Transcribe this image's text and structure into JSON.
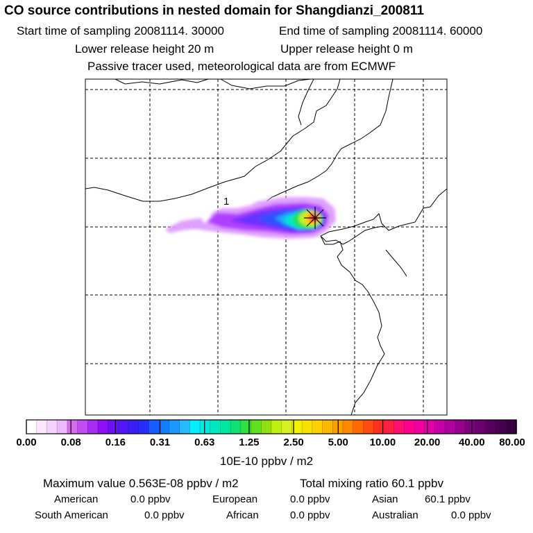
{
  "header": {
    "title": "CO  source contributions in nested domain for Shangdianzi_200811",
    "start_label": "Start time of sampling 20081114. 30000",
    "end_label": "End time of sampling 20081114. 60000",
    "lower_label": "Lower release height   20 m",
    "upper_label": "Upper release height    0 m",
    "tracer_label": "Passive tracer used, meteorological data are from ECMWF"
  },
  "map": {
    "receptor_label": "1",
    "plume_colors": [
      "#e0a0ff",
      "#b040ff",
      "#6a30ff",
      "#3050ff",
      "#1aa8ff",
      "#00e8d0",
      "#20e060",
      "#c8f020",
      "#ffd000",
      "#ff5a10",
      "#ff0080"
    ]
  },
  "chart_data": {
    "type": "heatmap",
    "colorbar": {
      "tick_labels": [
        "0.00",
        "0.08",
        "0.16",
        "0.31",
        "0.63",
        "1.25",
        "2.50",
        "5.00",
        "10.00",
        "20.00",
        "40.00",
        "80.00"
      ],
      "units": "10E-10 ppbv / m2",
      "colors": [
        "#ffffff",
        "#fbe8ff",
        "#f5d2ff",
        "#edbaff",
        "#d86cf0",
        "#c24cf2",
        "#a82cf5",
        "#8f10f5",
        "#6a12f0",
        "#5018f5",
        "#3a20f8",
        "#2430f8",
        "#1a5cff",
        "#147cff",
        "#1c98ff",
        "#28b8ff",
        "#00f0ff",
        "#00e8e0",
        "#00e8c0",
        "#00e8a0",
        "#10e070",
        "#30e040",
        "#60e020",
        "#90e010",
        "#c0f010",
        "#d8f020",
        "#f0f000",
        "#f8e000",
        "#ffd000",
        "#ffb800",
        "#ffa000",
        "#ff8800",
        "#ff6a00",
        "#ff4c10",
        "#ff3020",
        "#ff2040",
        "#ff1070",
        "#ff0090",
        "#f000a0",
        "#e000a8",
        "#c800a8",
        "#b000a0",
        "#980090",
        "#800080",
        "#6c0070",
        "#580060",
        "#480050",
        "#380040"
      ]
    },
    "maximum_value": "Maximum value  0.563E-08 ppbv / m2",
    "total_mixing_ratio": "Total mixing ratio      60.1 ppbv"
  },
  "sources": {
    "american_label": "American",
    "american_value": "0.0 ppbv",
    "european_label": "European",
    "european_value": "0.0 ppbv",
    "asian_label": "Asian",
    "asian_value": "60.1 ppbv",
    "south_american_label": "South American",
    "south_american_value": "0.0 ppbv",
    "african_label": "African",
    "african_value": "0.0 ppbv",
    "australian_label": "Australian",
    "australian_value": "0.0 ppbv"
  }
}
